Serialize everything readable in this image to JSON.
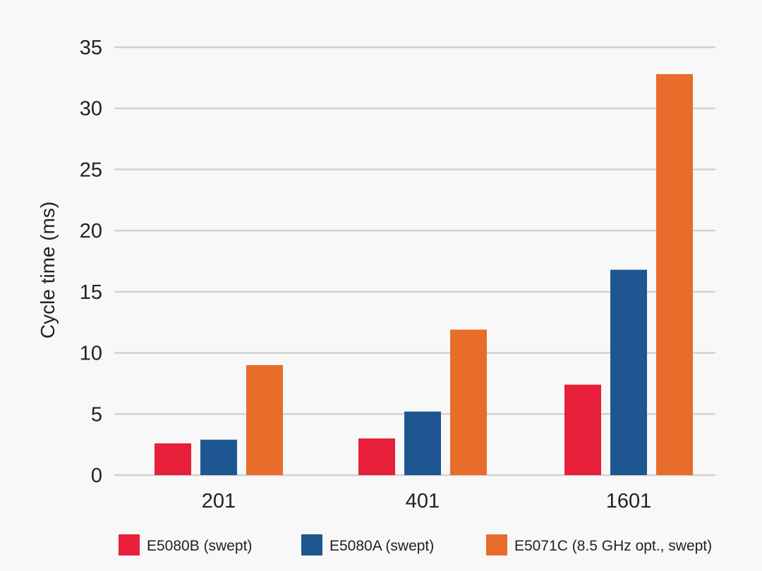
{
  "chart_data": {
    "type": "bar",
    "ylabel": "Cycle time (ms)",
    "xlabel": "",
    "ylim": [
      0,
      35
    ],
    "y_ticks": [
      0,
      5,
      10,
      15,
      20,
      25,
      30,
      35
    ],
    "grid": true,
    "legend_position": "bottom",
    "categories": [
      "201",
      "401",
      "1601"
    ],
    "series": [
      {
        "name": "E5080B (swept)",
        "color": "#e81f3a",
        "values": [
          2.6,
          3.0,
          7.4
        ]
      },
      {
        "name": "E5080A (swept)",
        "color": "#1d5690",
        "values": [
          2.9,
          5.2,
          16.8
        ]
      },
      {
        "name": "E5071C (8.5 GHz opt., swept)",
        "color": "#e86c2a",
        "values": [
          9.0,
          11.9,
          32.8
        ]
      }
    ]
  }
}
